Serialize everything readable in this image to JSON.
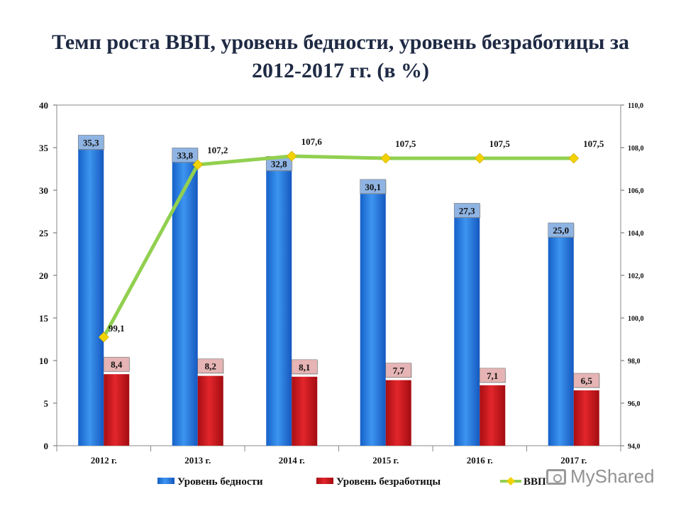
{
  "title_line1": "Темп роста ВВП, уровень бедности, уровень безработицы за",
  "title_line2": "2012-2017 гг. (в %)",
  "watermark": "MyShared",
  "colors": {
    "poverty": "#1f7be0",
    "unemployment": "#d4141b",
    "gdp": "#92d050",
    "gdp_marker": "#f2d200",
    "label_bg_poverty": "#8fb4e3",
    "label_bg_unemployment": "#e6b4b4"
  },
  "chart_data": {
    "type": "bar",
    "categories": [
      "2012 г.",
      "2013 г.",
      "2014 г.",
      "2015 г.",
      "2016 г.",
      "2017 г."
    ],
    "series": [
      {
        "name": "Уровень бедности",
        "type": "bar",
        "axis": "left",
        "values": [
          35.3,
          33.8,
          32.8,
          30.1,
          27.3,
          25.0
        ],
        "labels": [
          "35,3",
          "33,8",
          "32,8",
          "30,1",
          "27,3",
          "25,0"
        ]
      },
      {
        "name": "Уровень безработицы",
        "type": "bar",
        "axis": "left",
        "values": [
          8.4,
          8.2,
          8.1,
          7.7,
          7.1,
          6.5
        ],
        "labels": [
          "8,4",
          "8,2",
          "8,1",
          "7,7",
          "7,1",
          "6,5"
        ]
      },
      {
        "name": "ВВП",
        "type": "line",
        "axis": "right",
        "values": [
          99.1,
          107.2,
          107.6,
          107.5,
          107.5,
          107.5
        ],
        "labels": [
          "99,1",
          "107,2",
          "107,6",
          "107,5",
          "107,5",
          "107,5"
        ]
      }
    ],
    "y_left": {
      "ylim": [
        0,
        40
      ],
      "ticks": [
        "0",
        "5",
        "10",
        "15",
        "20",
        "25",
        "30",
        "35",
        "40"
      ]
    },
    "y_right": {
      "ylim": [
        94,
        110
      ],
      "ticks": [
        "94,0",
        "96,0",
        "98,0",
        "100,0",
        "102,0",
        "104,0",
        "106,0",
        "108,0",
        "110,0"
      ]
    },
    "grid": false,
    "legend_position": "bottom"
  }
}
